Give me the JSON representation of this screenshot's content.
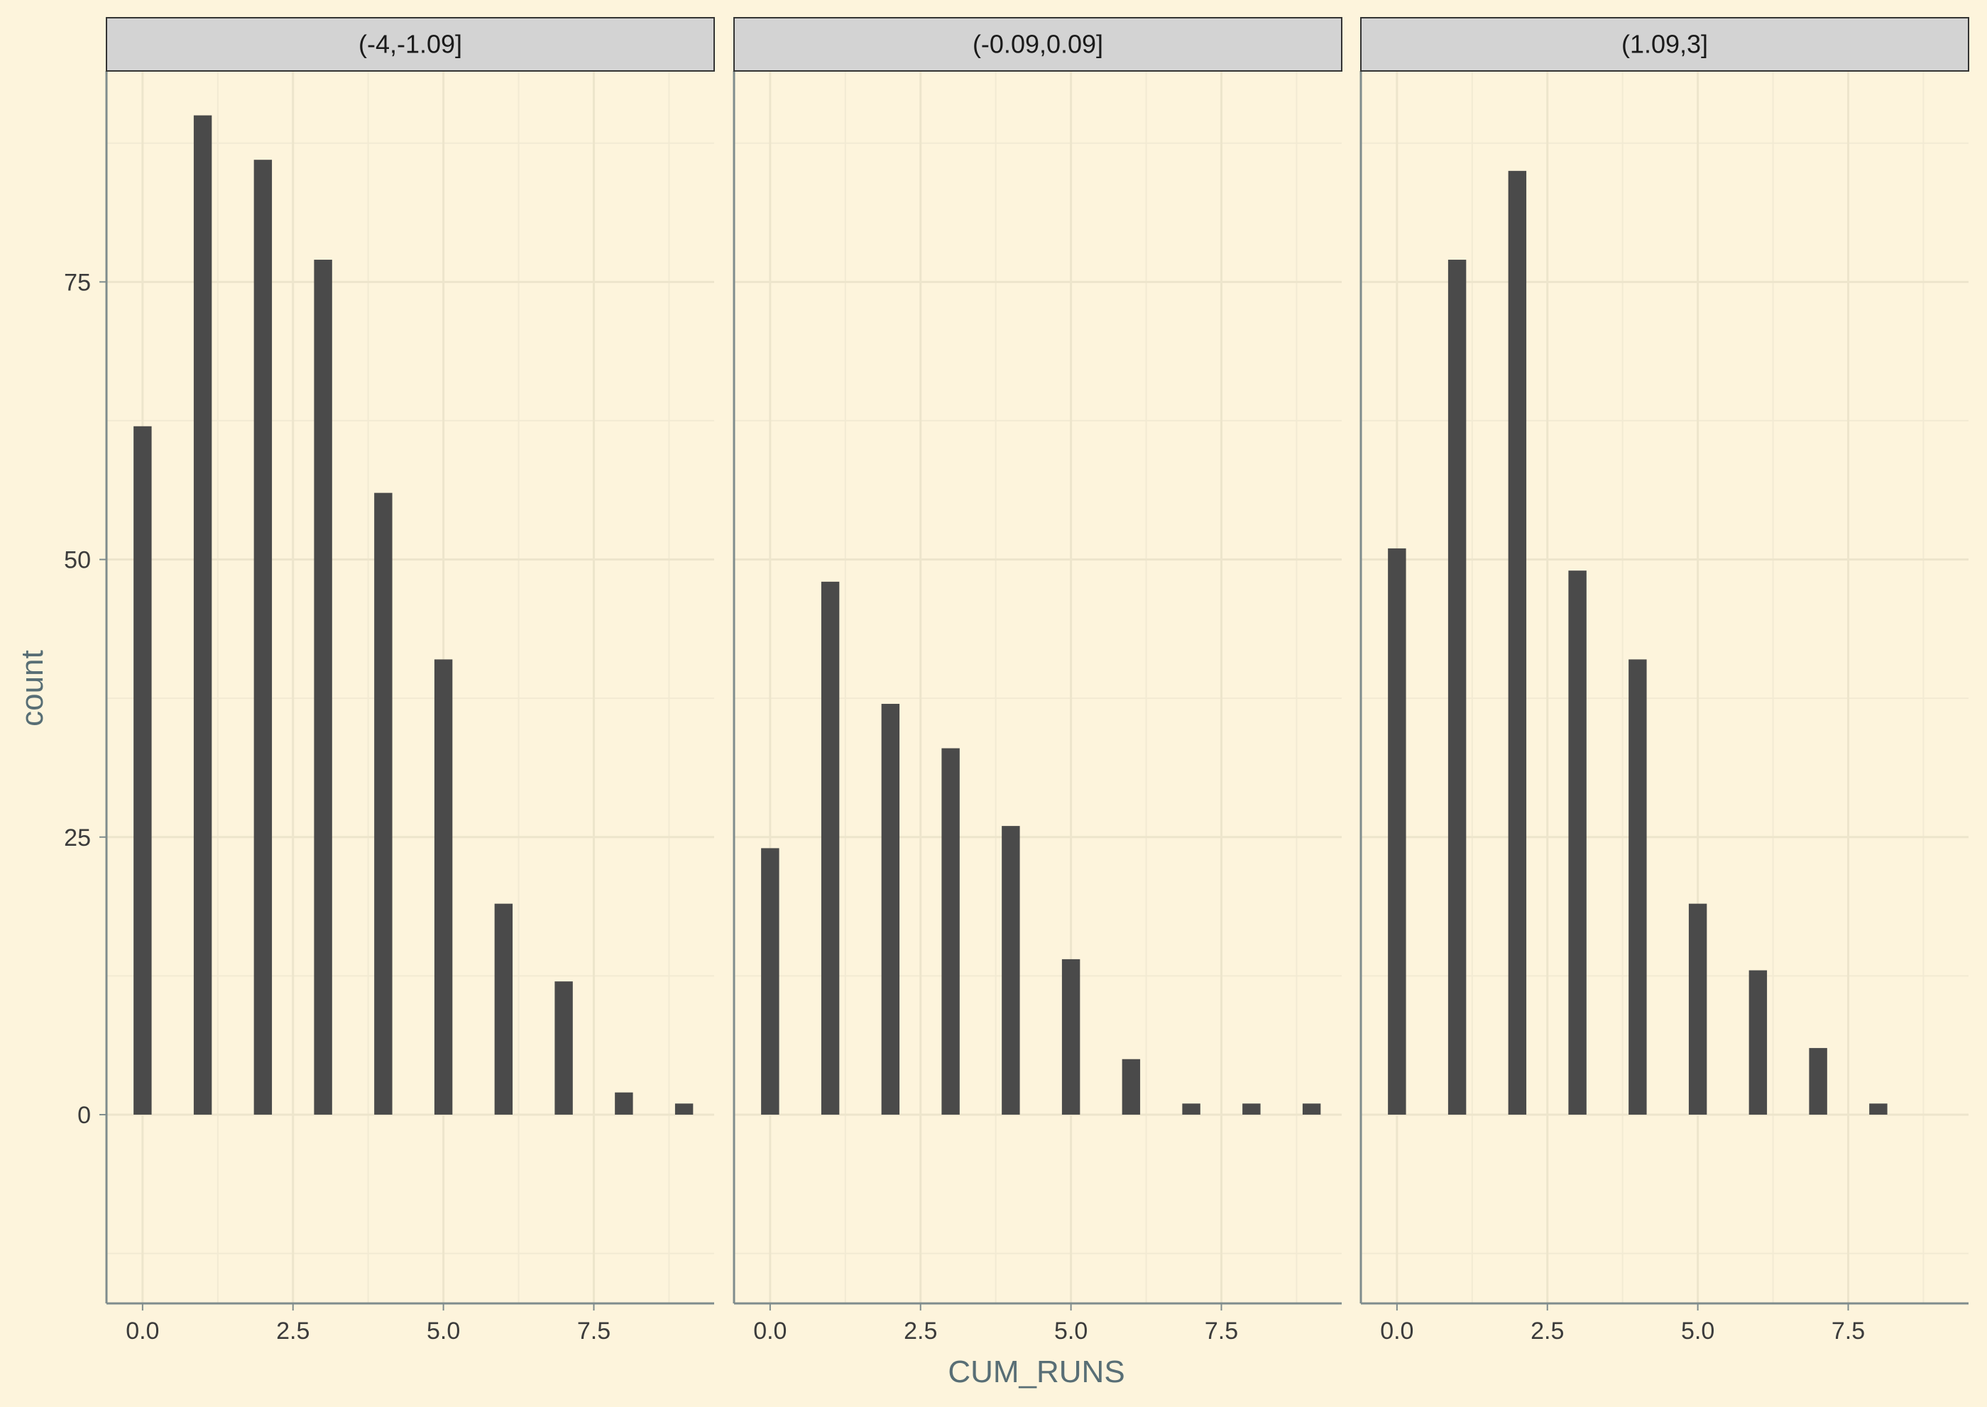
{
  "chart_data": {
    "type": "bar",
    "facet_type": "facet_wrap",
    "xlabel": "CUM_RUNS",
    "ylabel": "count",
    "xlim": [
      -0.6,
      9.5
    ],
    "ylim": [
      -17,
      94
    ],
    "x_ticks": [
      0,
      2.5,
      5,
      7.5
    ],
    "x_tick_labels": [
      "0.0",
      "2.5",
      "5.0",
      "7.5"
    ],
    "y_ticks": [
      0,
      25,
      50,
      75
    ],
    "y_tick_labels": [
      "0",
      "25",
      "50",
      "75"
    ],
    "grid": true,
    "bar_width": 0.3,
    "bar_color": "#4a4a4a",
    "background_color": "#fdf4dc",
    "strip_color": "#d3d3d3",
    "panels": [
      {
        "label": "(-4,-1.09]",
        "x": [
          0,
          1,
          2,
          3,
          4,
          5,
          6,
          7,
          8,
          9
        ],
        "values": [
          62,
          90,
          86,
          77,
          56,
          41,
          19,
          12,
          2,
          1
        ]
      },
      {
        "label": "(-0.09,0.09]",
        "x": [
          0,
          1,
          2,
          3,
          4,
          5,
          6,
          7,
          8,
          9
        ],
        "values": [
          24,
          48,
          37,
          33,
          26,
          14,
          5,
          1,
          1,
          1
        ]
      },
      {
        "label": "(1.09,3]",
        "x": [
          0,
          1,
          2,
          3,
          4,
          5,
          6,
          7,
          8
        ],
        "values": [
          51,
          77,
          85,
          49,
          41,
          19,
          13,
          6,
          1
        ]
      }
    ]
  }
}
